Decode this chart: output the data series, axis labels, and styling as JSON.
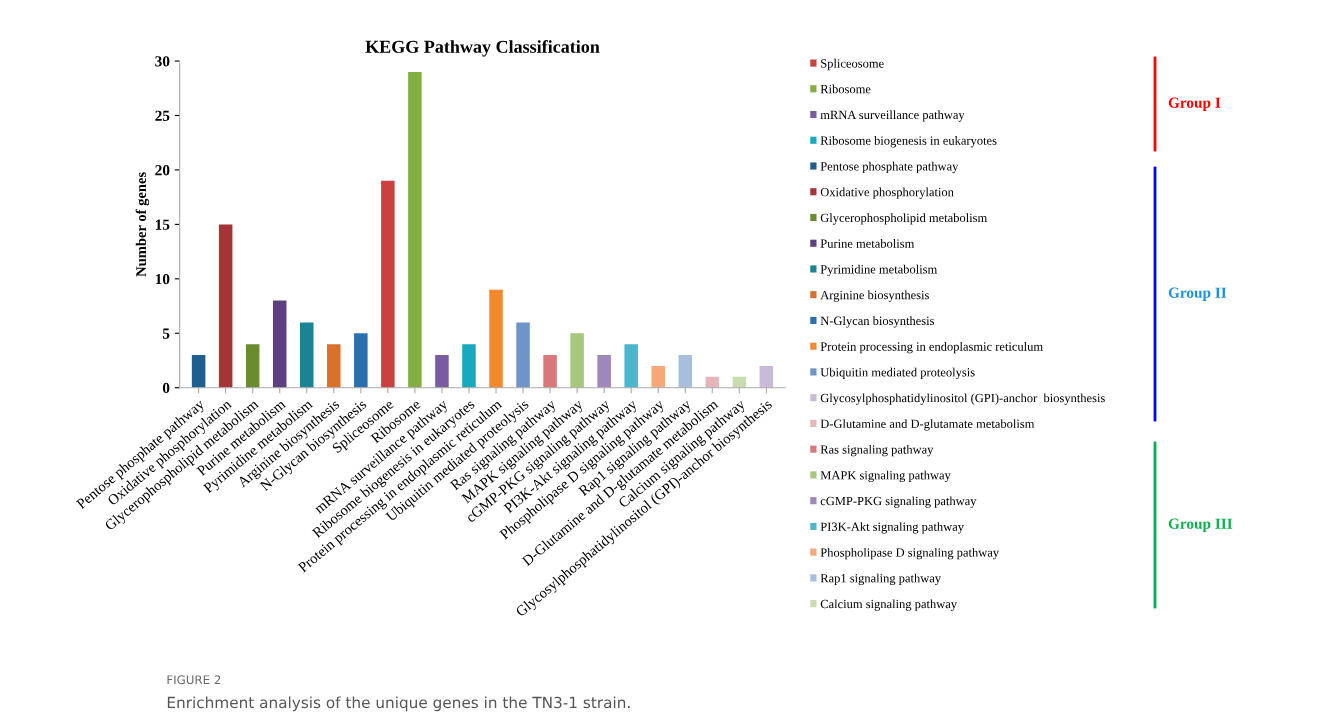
{
  "chart_data": {
    "type": "bar",
    "title": "KEGG Pathway Classification",
    "ylabel": "Number of genes",
    "categories": [
      "Pentose phosphate pathway",
      "Oxidative phosphorylation",
      "Glycerophospholipid metabolism",
      "Purine metabolism",
      "Pyrimidine metabolism",
      "Arginine biosynthesis",
      "N-Glycan biosynthesis",
      "Spliceosome",
      "Ribosome",
      "mRNA surveillance pathway",
      "Ribosome biogenesis in eukaryotes",
      "Protein processing in endoplasmic reticulum",
      "Ubiquitin mediated proteolysis",
      "Ras signaling pathway",
      "MAPK signaling pathway",
      "cGMP-PKG signaling pathway",
      "PI3K-Akt signaling pathway",
      "Phospholipase D signaling pathway",
      "Rap1 signaling pathway",
      "D-Glutamine and D-glutamate metabolism",
      "Calcium signaling pathway",
      "Glycosylphosphatidylinositol (GPI)-anchor biosynthesis"
    ],
    "series": [
      {
        "name": "Spliceosome",
        "color": "#cc4040",
        "values": [
          null,
          null,
          null,
          null,
          null,
          null,
          null,
          19,
          null,
          null,
          null,
          null,
          null,
          null,
          null,
          null,
          null,
          null,
          null,
          null,
          null,
          null
        ]
      },
      {
        "name": "Ribosome",
        "color": "#84ad42",
        "values": [
          null,
          null,
          null,
          null,
          null,
          null,
          null,
          null,
          29,
          null,
          null,
          null,
          null,
          null,
          null,
          null,
          null,
          null,
          null,
          null,
          null,
          null
        ]
      },
      {
        "name": "mRNA surveillance pathway",
        "color": "#7a5ba0",
        "values": [
          null,
          null,
          null,
          null,
          null,
          null,
          null,
          null,
          null,
          3,
          null,
          null,
          null,
          null,
          null,
          null,
          null,
          null,
          null,
          null,
          null,
          null
        ]
      },
      {
        "name": "Ribosome biogenesis in eukaryotes",
        "color": "#18a8c0",
        "values": [
          null,
          null,
          null,
          null,
          null,
          null,
          null,
          null,
          null,
          null,
          4,
          null,
          null,
          null,
          null,
          null,
          null,
          null,
          null,
          null,
          null,
          null
        ]
      },
      {
        "name": "Pentose phosphate pathway",
        "color": "#1f5f8f",
        "values": [
          3,
          null,
          null,
          null,
          null,
          null,
          null,
          null,
          null,
          null,
          null,
          null,
          null,
          null,
          null,
          null,
          null,
          null,
          null,
          null,
          null,
          null
        ]
      },
      {
        "name": "Oxidative phosphorylation",
        "color": "#a83236",
        "values": [
          null,
          15,
          null,
          null,
          null,
          null,
          null,
          null,
          null,
          null,
          null,
          null,
          null,
          null,
          null,
          null,
          null,
          null,
          null,
          null,
          null,
          null
        ]
      },
      {
        "name": "Glycerophospholipid metabolism",
        "color": "#6a8c2f",
        "values": [
          null,
          null,
          4,
          null,
          null,
          null,
          null,
          null,
          null,
          null,
          null,
          null,
          null,
          null,
          null,
          null,
          null,
          null,
          null,
          null,
          null,
          null
        ]
      },
      {
        "name": "Purine metabolism",
        "color": "#5e3f7f",
        "values": [
          null,
          null,
          null,
          8,
          null,
          null,
          null,
          null,
          null,
          null,
          null,
          null,
          null,
          null,
          null,
          null,
          null,
          null,
          null,
          null,
          null,
          null
        ]
      },
      {
        "name": "Pyrimidine metabolism",
        "color": "#1a8494",
        "values": [
          null,
          null,
          null,
          null,
          6,
          null,
          null,
          null,
          null,
          null,
          null,
          null,
          null,
          null,
          null,
          null,
          null,
          null,
          null,
          null,
          null,
          null
        ]
      },
      {
        "name": "Arginine biosynthesis",
        "color": "#d9712a",
        "values": [
          null,
          null,
          null,
          null,
          null,
          4,
          null,
          null,
          null,
          null,
          null,
          null,
          null,
          null,
          null,
          null,
          null,
          null,
          null,
          null,
          null,
          null
        ]
      },
      {
        "name": "N-Glycan biosynthesis",
        "color": "#2870b0",
        "values": [
          null,
          null,
          null,
          null,
          null,
          null,
          5,
          null,
          null,
          null,
          null,
          null,
          null,
          null,
          null,
          null,
          null,
          null,
          null,
          null,
          null,
          null
        ]
      },
      {
        "name": "Protein processing in endoplasmic reticulum",
        "color": "#f5882e",
        "values": [
          null,
          null,
          null,
          null,
          null,
          null,
          null,
          null,
          null,
          null,
          null,
          9,
          null,
          null,
          null,
          null,
          null,
          null,
          null,
          null,
          null,
          null
        ]
      },
      {
        "name": "Ubiquitin mediated proteolysis",
        "color": "#6f95c8",
        "values": [
          null,
          null,
          null,
          null,
          null,
          null,
          null,
          null,
          null,
          null,
          null,
          null,
          6,
          null,
          null,
          null,
          null,
          null,
          null,
          null,
          null,
          null
        ]
      },
      {
        "name": "Glycosylphosphatidylinositol (GPI)-anchor  biosynthesis",
        "color": "#c9bad8",
        "values": [
          null,
          null,
          null,
          null,
          null,
          null,
          null,
          null,
          null,
          null,
          null,
          null,
          null,
          null,
          null,
          null,
          null,
          null,
          null,
          null,
          null,
          2
        ]
      },
      {
        "name": "D-Glutamine and D-glutamate metabolism",
        "color": "#e5b6b8",
        "values": [
          null,
          null,
          null,
          null,
          null,
          null,
          null,
          null,
          null,
          null,
          null,
          null,
          null,
          null,
          null,
          null,
          null,
          null,
          null,
          1,
          null,
          null
        ]
      },
      {
        "name": "Ras signaling pathway",
        "color": "#d9787a",
        "values": [
          null,
          null,
          null,
          null,
          null,
          null,
          null,
          null,
          null,
          null,
          null,
          null,
          null,
          3,
          null,
          null,
          null,
          null,
          null,
          null,
          null,
          null
        ]
      },
      {
        "name": "MAPK signaling pathway",
        "color": "#a5c87a",
        "values": [
          null,
          null,
          null,
          null,
          null,
          null,
          null,
          null,
          null,
          null,
          null,
          null,
          null,
          null,
          5,
          null,
          null,
          null,
          null,
          null,
          null,
          null
        ]
      },
      {
        "name": "cGMP-PKG signaling pathway",
        "color": "#9e88bb",
        "values": [
          null,
          null,
          null,
          null,
          null,
          null,
          null,
          null,
          null,
          null,
          null,
          null,
          null,
          null,
          null,
          3,
          null,
          null,
          null,
          null,
          null,
          null
        ]
      },
      {
        "name": "PI3K-Akt signaling pathway",
        "color": "#4bb6cc",
        "values": [
          null,
          null,
          null,
          null,
          null,
          null,
          null,
          null,
          null,
          null,
          null,
          null,
          null,
          null,
          null,
          null,
          4,
          null,
          null,
          null,
          null,
          null
        ]
      },
      {
        "name": "Phospholipase D signaling pathway",
        "color": "#f8a878",
        "values": [
          null,
          null,
          null,
          null,
          null,
          null,
          null,
          null,
          null,
          null,
          null,
          null,
          null,
          null,
          null,
          null,
          null,
          2,
          null,
          null,
          null,
          null
        ]
      },
      {
        "name": "Rap1 signaling pathway",
        "color": "#a8bfdc",
        "values": [
          null,
          null,
          null,
          null,
          null,
          null,
          null,
          null,
          null,
          null,
          null,
          null,
          null,
          null,
          null,
          null,
          null,
          null,
          3,
          null,
          null,
          null
        ]
      },
      {
        "name": "Calcium signaling pathway",
        "color": "#c8dcb0",
        "values": [
          null,
          null,
          null,
          null,
          null,
          null,
          null,
          null,
          null,
          null,
          null,
          null,
          null,
          null,
          null,
          null,
          null,
          null,
          null,
          null,
          1,
          null
        ]
      }
    ],
    "ylim": [
      0,
      30
    ],
    "yticks": [
      0,
      5,
      10,
      15,
      20,
      25,
      30
    ],
    "grid": false,
    "legend": "right",
    "annotations": [
      "Group I",
      "Group II",
      "Group III",
      "FIGURE 2",
      "Enrichment analysis of the unique genes in the TN3-1 strain."
    ]
  }
}
